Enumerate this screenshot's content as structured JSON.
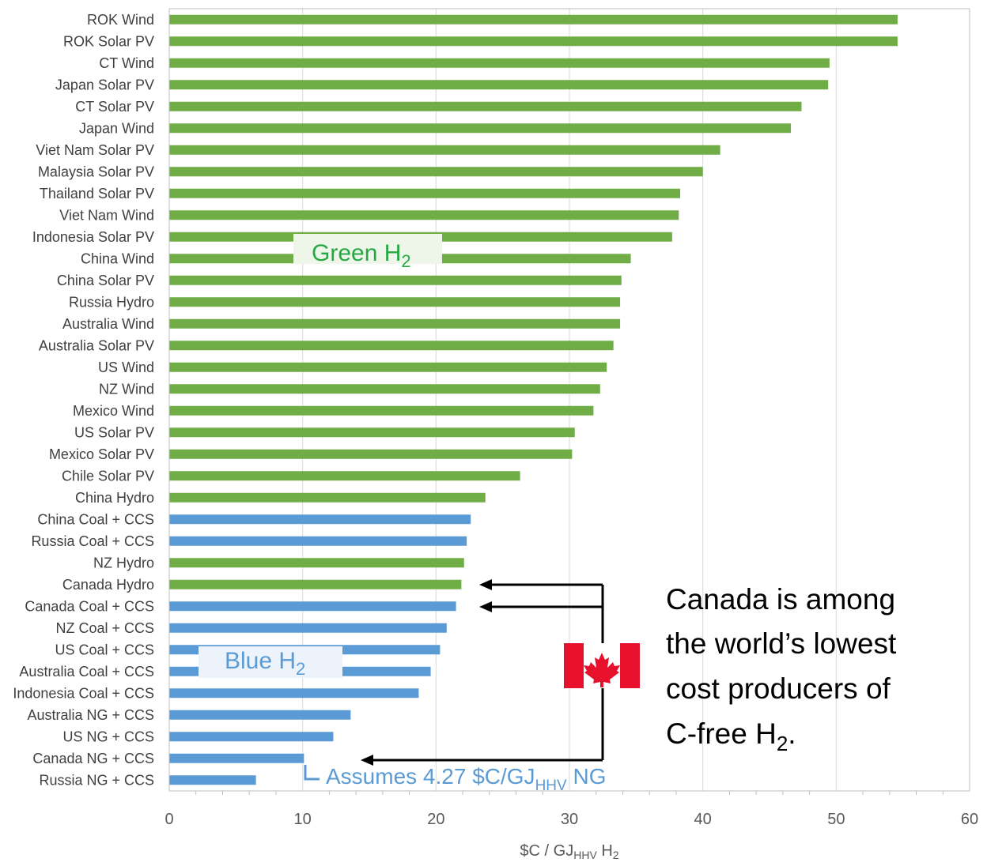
{
  "chart_data": {
    "type": "bar",
    "orientation": "horizontal",
    "categories": [
      "ROK Wind",
      "ROK Solar PV",
      "CT Wind",
      "Japan Solar PV",
      "CT Solar PV",
      "Japan Wind",
      "Viet Nam Solar PV",
      "Malaysia Solar PV",
      "Thailand Solar PV",
      "Viet Nam Wind",
      "Indonesia Solar PV",
      "China Wind",
      "China Solar PV",
      "Russia Hydro",
      "Australia Wind",
      "Australia Solar PV",
      "US Wind",
      "NZ Wind",
      "Mexico Wind",
      "US Solar PV",
      "Mexico Solar PV",
      "Chile Solar PV",
      "China Hydro",
      "China Coal + CCS",
      "Russia Coal + CCS",
      "NZ Hydro",
      "Canada Hydro",
      "Canada Coal + CCS",
      "NZ Coal + CCS",
      "US Coal + CCS",
      "Australia Coal + CCS",
      "Indonesia Coal + CCS",
      "Australia NG + CCS",
      "US NG + CCS",
      "Canada NG + CCS",
      "Russia NG + CCS"
    ],
    "values": [
      54.6,
      54.6,
      49.5,
      49.4,
      47.4,
      46.6,
      41.3,
      40.0,
      38.3,
      38.2,
      37.7,
      34.6,
      33.9,
      33.8,
      33.8,
      33.3,
      32.8,
      32.3,
      31.8,
      30.4,
      30.2,
      26.3,
      23.7,
      22.6,
      22.3,
      22.1,
      21.9,
      21.5,
      20.8,
      20.3,
      19.6,
      18.7,
      13.6,
      12.3,
      10.1,
      6.5
    ],
    "groups": [
      "green",
      "green",
      "green",
      "green",
      "green",
      "green",
      "green",
      "green",
      "green",
      "green",
      "green",
      "green",
      "green",
      "green",
      "green",
      "green",
      "green",
      "green",
      "green",
      "green",
      "green",
      "green",
      "green",
      "blue",
      "blue",
      "green",
      "green",
      "blue",
      "blue",
      "blue",
      "blue",
      "blue",
      "blue",
      "blue",
      "blue",
      "blue"
    ],
    "xlim": [
      0,
      60
    ],
    "xticks": [
      0,
      10,
      20,
      30,
      40,
      50,
      60
    ],
    "xlabel": "$C / GJHHV H2",
    "xlabel_parts": {
      "main": "$C / GJ",
      "sub": "HHV",
      "tail": " H",
      "sub2": "2"
    },
    "grid": true,
    "legend": "none",
    "colors": {
      "green": "#70ad47",
      "blue": "#5b9bd5"
    },
    "annotations": {
      "green_label": {
        "main": "Green H",
        "sub": "2"
      },
      "blue_label": {
        "main": "Blue H",
        "sub": "2"
      },
      "ng_note": {
        "prefix": "Assumes 4.27 $C/GJ",
        "sub": "HHV",
        "suffix": " NG"
      },
      "canada_note": {
        "line1": "Canada is among",
        "line2": "the world’s lowest",
        "line3": "cost producers of",
        "line4_main": "C-free H",
        "line4_sub": "2",
        "line4_tail": "."
      },
      "flag": "canada-flag-icon"
    }
  }
}
